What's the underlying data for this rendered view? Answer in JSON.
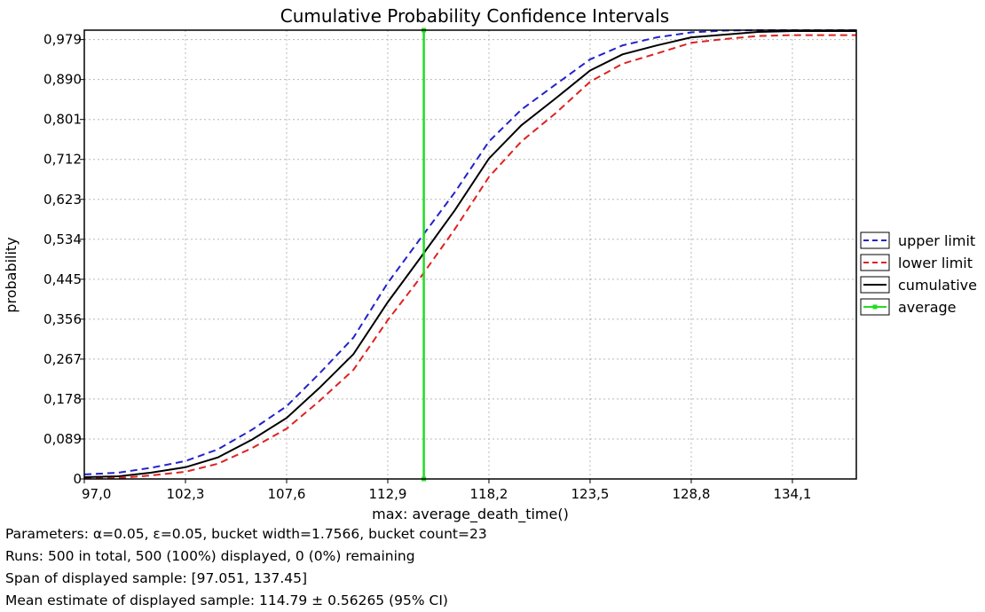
{
  "chart_data": {
    "type": "line",
    "title": "Cumulative Probability Confidence Intervals",
    "xlabel": "max: average_death_time()",
    "ylabel": "probability",
    "xlim": [
      97.0,
      137.45
    ],
    "ylim": [
      0,
      1.0
    ],
    "x_ticks": [
      97.0,
      102.3,
      107.6,
      112.9,
      118.2,
      123.5,
      128.8,
      134.1
    ],
    "x_tick_labels": [
      "97,0",
      "102,3",
      "107,6",
      "112,9",
      "118,2",
      "123,5",
      "128,8",
      "134,1"
    ],
    "y_ticks": [
      0,
      0.089,
      0.178,
      0.267,
      0.356,
      0.445,
      0.534,
      0.623,
      0.712,
      0.801,
      0.89,
      0.979
    ],
    "y_tick_labels": [
      "0",
      "0,089",
      "0,178",
      "0,267",
      "0,356",
      "0,445",
      "0,534",
      "0,623",
      "0,712",
      "0,801",
      "0,890",
      "0,979"
    ],
    "grid": true,
    "legend_position": "right",
    "series": [
      {
        "name": "upper limit",
        "color": "#2222cc",
        "style": "dashed",
        "x": [
          97.0,
          98.8,
          100.5,
          102.3,
          104.0,
          105.8,
          107.6,
          109.3,
          111.1,
          112.9,
          114.6,
          116.4,
          118.2,
          119.9,
          121.7,
          123.5,
          125.2,
          127.0,
          128.8,
          130.5,
          132.3,
          134.1,
          135.8,
          137.45
        ],
        "values": [
          0.01,
          0.014,
          0.025,
          0.04,
          0.066,
          0.11,
          0.162,
          0.234,
          0.315,
          0.437,
          0.535,
          0.638,
          0.752,
          0.823,
          0.879,
          0.935,
          0.966,
          0.984,
          0.995,
          0.999,
          1.0,
          1.0,
          1.0,
          1.0
        ]
      },
      {
        "name": "lower limit",
        "color": "#dd2222",
        "style": "dashed",
        "x": [
          97.0,
          98.8,
          100.5,
          102.3,
          104.0,
          105.8,
          107.6,
          109.3,
          111.1,
          112.9,
          114.6,
          116.4,
          118.2,
          119.9,
          121.7,
          123.5,
          125.2,
          127.0,
          128.8,
          130.5,
          132.3,
          134.1,
          135.8,
          137.45
        ],
        "values": [
          0.001,
          0.002,
          0.008,
          0.016,
          0.034,
          0.069,
          0.112,
          0.173,
          0.243,
          0.354,
          0.448,
          0.556,
          0.673,
          0.752,
          0.815,
          0.885,
          0.925,
          0.948,
          0.972,
          0.98,
          0.987,
          0.989,
          0.989,
          0.989
        ]
      },
      {
        "name": "cumulative",
        "color": "#000000",
        "style": "solid",
        "x": [
          97.0,
          98.8,
          100.5,
          102.3,
          104.0,
          105.8,
          107.6,
          109.3,
          111.1,
          112.9,
          114.6,
          116.4,
          118.2,
          119.9,
          121.7,
          123.5,
          125.2,
          127.0,
          128.8,
          130.5,
          132.3,
          134.1,
          135.8,
          137.45
        ],
        "values": [
          0.004,
          0.006,
          0.014,
          0.026,
          0.048,
          0.088,
          0.136,
          0.202,
          0.278,
          0.394,
          0.492,
          0.598,
          0.714,
          0.788,
          0.848,
          0.91,
          0.946,
          0.966,
          0.984,
          0.99,
          0.996,
          0.998,
          0.998,
          0.998
        ]
      },
      {
        "name": "average",
        "color": "#22dd22",
        "style": "solid-markers",
        "x": [
          114.79,
          114.79
        ],
        "values": [
          0.0,
          1.0
        ]
      }
    ]
  },
  "info": {
    "parameters": "Parameters: α=0.05, ε=0.05, bucket width=1.7566, bucket count=23",
    "runs": "Runs: 500 in total, 500 (100%) displayed, 0 (0%) remaining",
    "span": "Span of displayed sample: [97.051, 137.45]",
    "mean": "Mean estimate of displayed sample: 114.79 ± 0.56265 (95% CI)"
  }
}
